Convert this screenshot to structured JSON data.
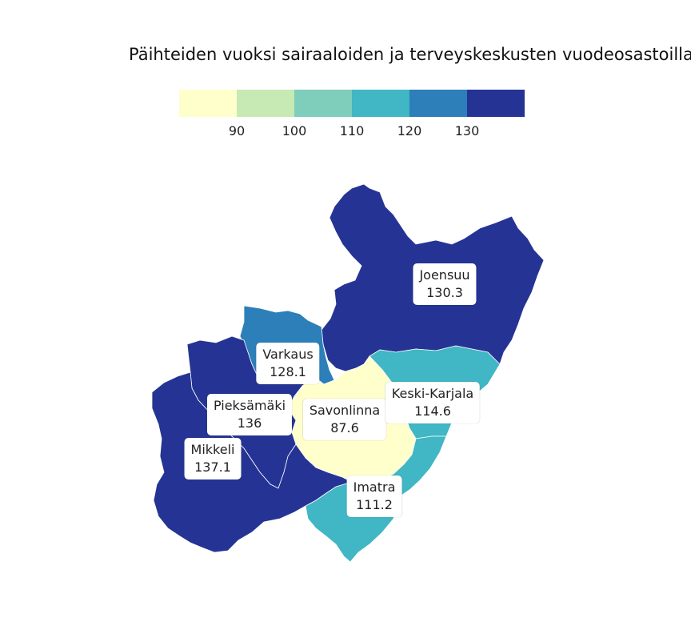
{
  "title": "Päihteiden vuoksi sairaaloiden ja terveyskeskusten vuodeosastoilla h",
  "legend": {
    "colors": [
      "#ffffcc",
      "#c7e9b4",
      "#7fcdbb",
      "#41b6c4",
      "#2c7fb8",
      "#253494"
    ],
    "ticks": [
      "90",
      "100",
      "110",
      "120",
      "130"
    ]
  },
  "regions": [
    {
      "name": "Joensuu",
      "value": "130.3",
      "color": "#253494"
    },
    {
      "name": "Varkaus",
      "value": "128.1",
      "color": "#2c7fb8"
    },
    {
      "name": "Pieksämäki",
      "value": "136",
      "color": "#253494"
    },
    {
      "name": "Savonlinna",
      "value": "87.6",
      "color": "#ffffcc"
    },
    {
      "name": "Keski-Karjala",
      "value": "114.6",
      "color": "#41b6c4"
    },
    {
      "name": "Mikkeli",
      "value": "137.1",
      "color": "#253494"
    },
    {
      "name": "Imatra",
      "value": "111.2",
      "color": "#41b6c4"
    }
  ]
}
